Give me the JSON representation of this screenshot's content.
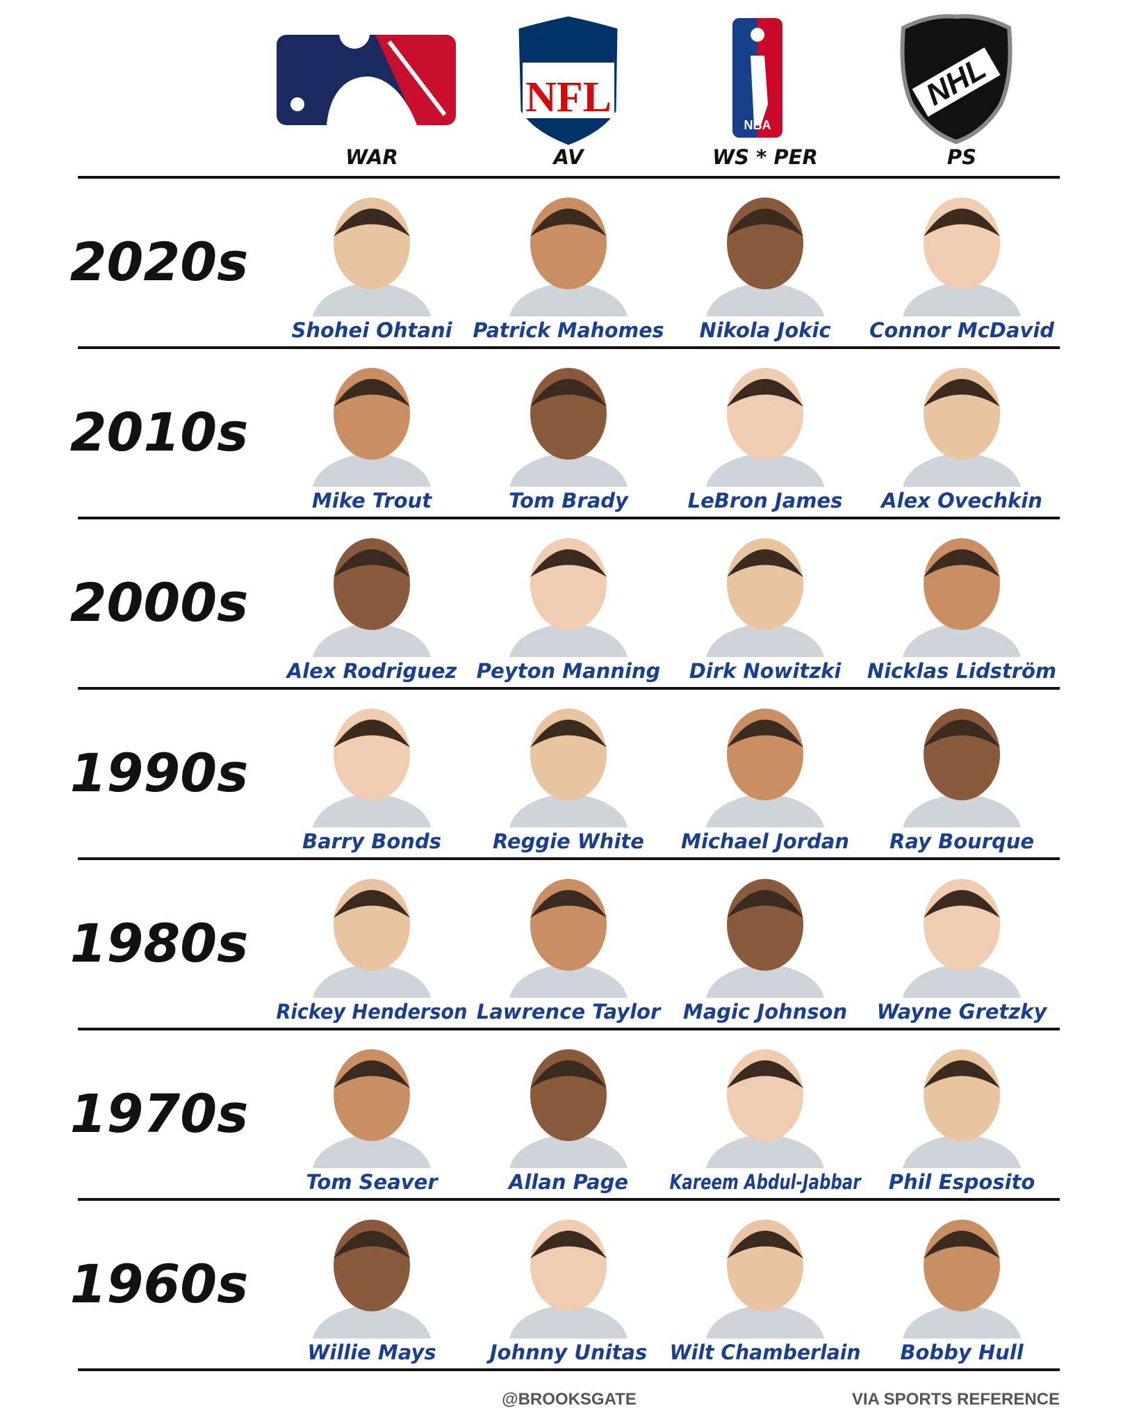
{
  "header": {
    "leagues": [
      {
        "metric": "WAR"
      },
      {
        "logo": "NFL",
        "metric": "AV"
      },
      {
        "logo": "NBA",
        "metric": "WS * PER"
      },
      {
        "logo": "NHL",
        "metric": "PS"
      }
    ]
  },
  "rows": [
    {
      "decade": "2020s",
      "players": [
        "Shohei Ohtani",
        "Patrick Mahomes",
        "Nikola Jokic",
        "Connor McDavid"
      ]
    },
    {
      "decade": "2010s",
      "players": [
        "Mike Trout",
        "Tom Brady",
        "LeBron James",
        "Alex Ovechkin"
      ]
    },
    {
      "decade": "2000s",
      "players": [
        "Alex Rodriguez",
        "Peyton Manning",
        "Dirk Nowitzki",
        "Nicklas Lidström"
      ]
    },
    {
      "decade": "1990s",
      "players": [
        "Barry Bonds",
        "Reggie White",
        "Michael Jordan",
        "Ray Bourque"
      ]
    },
    {
      "decade": "1980s",
      "players": [
        "Rickey Henderson",
        "Lawrence Taylor",
        "Magic Johnson",
        "Wayne Gretzky"
      ]
    },
    {
      "decade": "1970s",
      "players": [
        "Tom Seaver",
        "Allan Page",
        "Kareem Abdul-Jabbar",
        "Phil Esposito"
      ]
    },
    {
      "decade": "1960s",
      "players": [
        "Willie Mays",
        "Johnny Unitas",
        "Wilt Chamberlain",
        "Bobby Hull"
      ]
    }
  ],
  "footer": {
    "credit": "@BROOKSGATE",
    "source": "VIA SPORTS REFERENCE"
  }
}
